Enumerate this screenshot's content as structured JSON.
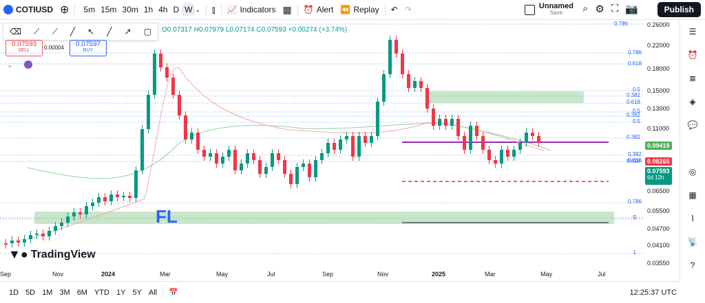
{
  "toolbar": {
    "symbol": "COTIUSD",
    "intervals": [
      "5m",
      "15m",
      "30m",
      "1h",
      "4h",
      "D",
      "W"
    ],
    "active_interval": "W",
    "indicators_label": "Indicators",
    "alert_label": "Alert",
    "replay_label": "Replay",
    "layout_name": "Unnamed",
    "layout_status": "Save",
    "publish_label": "Publish"
  },
  "ohlc": {
    "open": "O0.07317",
    "high": "H0.07979",
    "low": "L0.07174",
    "close": "C0.07593",
    "change": "+0.00274 (+3.74%)"
  },
  "trade": {
    "sell_price": "0.07593",
    "sell_label": "SELL",
    "spread": "0.00004",
    "buy_price": "0.07597",
    "buy_label": "BUY"
  },
  "annotation_text": "FL",
  "brand": "TradingView",
  "price_axis": [
    "0.26000",
    "0.22000",
    "0.18000",
    "0.15000",
    "0.13000",
    "0.11000",
    "0.08265",
    "0.06500",
    "0.05500",
    "0.04700",
    "0.04100",
    "0.03550"
  ],
  "price_tags": {
    "level": "0.09419",
    "ma": "0.08265",
    "last": "0.07593",
    "countdown": "6d 12h"
  },
  "fib_labels": [
    "0.786",
    "0.786",
    "0.618",
    "0.5",
    "0.382",
    "0.618",
    "0.5",
    "0.382",
    "0.5",
    "0.382",
    "0.382",
    "0.618",
    "0.786",
    "0",
    "1",
    "0.618",
    "0"
  ],
  "time_axis": [
    "Sep",
    "Nov",
    "2024",
    "Mar",
    "May",
    "Jul",
    "Sep",
    "Nov",
    "2025",
    "Mar",
    "May",
    "Jul"
  ],
  "ranges": [
    "1D",
    "5D",
    "1M",
    "3M",
    "6M",
    "YTD",
    "1Y",
    "5Y",
    "All"
  ],
  "clock": "12:25:37 UTC",
  "colors": {
    "up": "#089981",
    "down": "#f23645",
    "zone": "#a5d6a7",
    "level": "#9c27b0"
  },
  "chart_data": {
    "type": "candlestick",
    "timeframe": "W",
    "last_close": 0.07593,
    "ma_value": 0.08265,
    "horizontal_level": 0.09419,
    "ylim": [
      0.0355,
      0.26
    ]
  }
}
